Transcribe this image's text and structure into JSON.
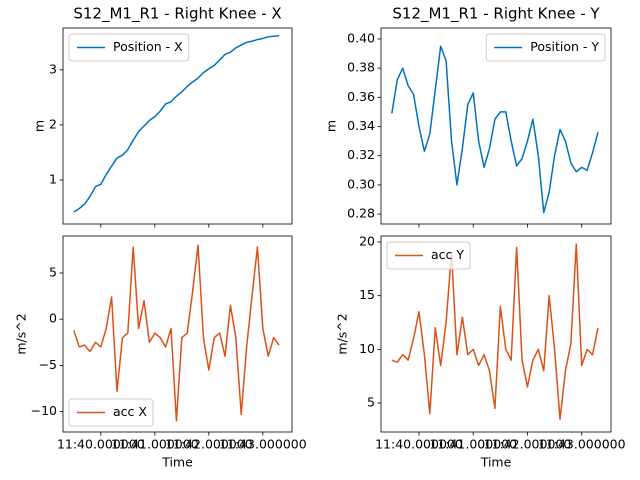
{
  "chart_data": [
    {
      "type": "line",
      "title": "S12_M1_R1 - Right Knee - X",
      "ylabel": "m",
      "legend": "upper left",
      "show_xtick_labels": false,
      "x": [
        39.5,
        39.6,
        39.7,
        39.8,
        39.9,
        40.0,
        40.1,
        40.2,
        40.3,
        40.4,
        40.5,
        40.6,
        40.7,
        40.8,
        40.9,
        41.0,
        41.1,
        41.2,
        41.3,
        41.4,
        41.5,
        41.6,
        41.7,
        41.8,
        41.9,
        42.0,
        42.1,
        42.2,
        42.3,
        42.4,
        42.5,
        42.6,
        42.7,
        42.8,
        42.9,
        43.0,
        43.1,
        43.2,
        43.3
      ],
      "xlim": [
        39.3,
        43.54
      ],
      "xticks": [
        40,
        41,
        42,
        43
      ],
      "ylim": [
        0.2,
        3.76
      ],
      "yticks": [
        1,
        2,
        3
      ],
      "series": [
        {
          "name": "Position - X",
          "color": "#0072bd",
          "values": [
            0.42,
            0.48,
            0.56,
            0.7,
            0.88,
            0.92,
            1.1,
            1.25,
            1.4,
            1.45,
            1.55,
            1.72,
            1.88,
            1.98,
            2.08,
            2.15,
            2.25,
            2.38,
            2.42,
            2.52,
            2.6,
            2.7,
            2.78,
            2.85,
            2.95,
            3.02,
            3.08,
            3.18,
            3.28,
            3.32,
            3.4,
            3.45,
            3.5,
            3.52,
            3.55,
            3.57,
            3.6,
            3.61,
            3.62
          ]
        }
      ]
    },
    {
      "type": "line",
      "title": "S12_M1_R1 - Right Knee - Y",
      "ylabel": "m",
      "legend": "upper right",
      "show_xtick_labels": false,
      "x": [
        39.5,
        39.6,
        39.7,
        39.8,
        39.9,
        40.0,
        40.1,
        40.2,
        40.3,
        40.4,
        40.5,
        40.6,
        40.7,
        40.8,
        40.9,
        41.0,
        41.1,
        41.2,
        41.3,
        41.4,
        41.5,
        41.6,
        41.7,
        41.8,
        41.9,
        42.0,
        42.1,
        42.2,
        42.3,
        42.4,
        42.5,
        42.6,
        42.7,
        42.8,
        42.9,
        43.0,
        43.1,
        43.2,
        43.3
      ],
      "xlim": [
        39.3,
        43.54
      ],
      "xticks": [
        40,
        41,
        42,
        43
      ],
      "ylim": [
        0.2732,
        0.4075
      ],
      "yticks": [
        0.28,
        {
          "value": 0.3,
          "label": "0.30"
        },
        0.32,
        0.34,
        0.36,
        0.38,
        {
          "value": 0.4,
          "label": "0.40"
        }
      ],
      "series": [
        {
          "name": "Position - Y",
          "color": "#0072bd",
          "values": [
            0.349,
            0.372,
            0.38,
            0.368,
            0.362,
            0.34,
            0.323,
            0.335,
            0.365,
            0.395,
            0.385,
            0.33,
            0.3,
            0.325,
            0.355,
            0.363,
            0.33,
            0.312,
            0.325,
            0.345,
            0.35,
            0.35,
            0.33,
            0.313,
            0.318,
            0.33,
            0.345,
            0.32,
            0.281,
            0.295,
            0.32,
            0.338,
            0.33,
            0.315,
            0.309,
            0.312,
            0.31,
            0.322,
            0.336
          ]
        }
      ]
    },
    {
      "type": "line",
      "ylabel": "m/s^2",
      "xlabel": "Time",
      "legend": "lower left",
      "show_xtick_labels": true,
      "x": [
        39.5,
        39.6,
        39.7,
        39.8,
        39.9,
        40.0,
        40.1,
        40.2,
        40.3,
        40.4,
        40.5,
        40.6,
        40.7,
        40.8,
        40.9,
        41.0,
        41.1,
        41.2,
        41.3,
        41.4,
        41.5,
        41.6,
        41.7,
        41.8,
        41.9,
        42.0,
        42.1,
        42.2,
        42.3,
        42.4,
        42.5,
        42.6,
        42.7,
        42.8,
        42.9,
        43.0,
        43.1,
        43.2,
        43.3
      ],
      "xlim": [
        39.3,
        43.54
      ],
      "xticks": [
        {
          "value": 40,
          "label": "11:40.000000"
        },
        {
          "value": 41,
          "label": "11:41.000000"
        },
        {
          "value": 42,
          "label": "11:42.000000"
        },
        {
          "value": 43,
          "label": "11:43.000000"
        }
      ],
      "ylim": [
        -12.2,
        9.0
      ],
      "yticks": [
        {
          "value": -10,
          "label": "−10"
        },
        {
          "value": -5,
          "label": "−5"
        },
        0,
        5
      ],
      "series": [
        {
          "name": "acc X",
          "color": "#d95319",
          "values": [
            -1.2,
            -3.0,
            -2.8,
            -3.5,
            -2.5,
            -3.0,
            -1.0,
            2.4,
            -7.8,
            -2.0,
            -1.5,
            7.8,
            -1.0,
            2.0,
            -2.5,
            -1.5,
            -2.0,
            -3.0,
            -1.0,
            -11.0,
            -2.0,
            -1.5,
            3.0,
            8.0,
            -2.0,
            -5.5,
            -2.0,
            -1.5,
            -4.0,
            1.5,
            -2.0,
            -10.3,
            -3.0,
            2.5,
            7.8,
            -1.0,
            -4.0,
            -2.0,
            -2.8
          ]
        }
      ]
    },
    {
      "type": "line",
      "ylabel": "m/s^2",
      "xlabel": "Time",
      "legend": "upper left",
      "show_xtick_labels": true,
      "x": [
        39.5,
        39.6,
        39.7,
        39.8,
        39.9,
        40.0,
        40.1,
        40.2,
        40.3,
        40.4,
        40.5,
        40.6,
        40.7,
        40.8,
        40.9,
        41.0,
        41.1,
        41.2,
        41.3,
        41.4,
        41.5,
        41.6,
        41.7,
        41.8,
        41.9,
        42.0,
        42.1,
        42.2,
        42.3,
        42.4,
        42.5,
        42.6,
        42.7,
        42.8,
        42.9,
        43.0,
        43.1,
        43.2,
        43.3
      ],
      "xlim": [
        39.3,
        43.54
      ],
      "xticks": [
        {
          "value": 40,
          "label": "11:40.000000"
        },
        {
          "value": 41,
          "label": "11:41.000000"
        },
        {
          "value": 42,
          "label": "11:42.000000"
        },
        {
          "value": 43,
          "label": "11:43.000000"
        }
      ],
      "ylim": [
        2.3,
        20.56
      ],
      "yticks": [
        5,
        10,
        15,
        20
      ],
      "series": [
        {
          "name": "acc Y",
          "color": "#d95319",
          "values": [
            9.0,
            8.8,
            9.5,
            9.0,
            11.0,
            13.5,
            9.5,
            4.0,
            12.0,
            8.5,
            12.5,
            19.0,
            9.5,
            13.0,
            9.5,
            10.0,
            8.5,
            9.5,
            8.0,
            4.5,
            14.0,
            10.0,
            9.0,
            19.5,
            9.0,
            6.5,
            9.0,
            10.0,
            8.0,
            15.0,
            10.0,
            3.5,
            8.0,
            10.5,
            19.8,
            8.5,
            10.0,
            9.5,
            12.0
          ]
        }
      ]
    }
  ]
}
